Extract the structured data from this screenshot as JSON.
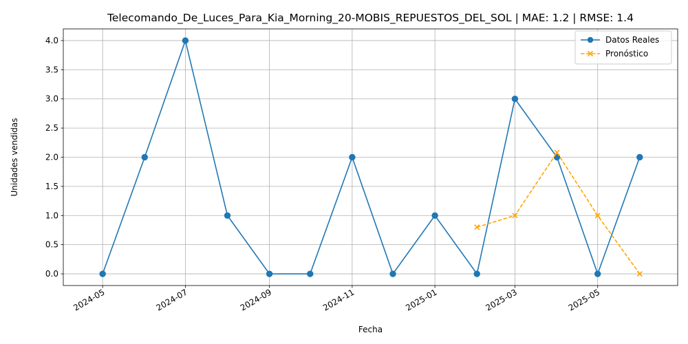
{
  "chart_data": {
    "type": "line",
    "title": "Telecomando_De_Luces_Para_Kia_Morning_20-MOBIS_REPUESTOS_DEL_SOL | MAE: 1.2 | RMSE: 1.4",
    "xlabel": "Fecha",
    "ylabel": "Unidades vendidas",
    "x_ticks": [
      "2024-05",
      "2024-07",
      "2024-09",
      "2024-11",
      "2025-01",
      "2025-03",
      "2025-05"
    ],
    "y_ticks": [
      "0.0",
      "0.5",
      "1.0",
      "1.5",
      "2.0",
      "2.5",
      "3.0",
      "3.5",
      "4.0"
    ],
    "ylim": [
      -0.2,
      4.2
    ],
    "xlim": [
      "2024-04-02",
      "2025-06-29"
    ],
    "grid": true,
    "legend_position": "top-right",
    "series": [
      {
        "name": "Datos Reales",
        "color": "#1f77b4",
        "line_style": "solid",
        "marker": "circle",
        "x": [
          "2024-05-01",
          "2024-06-01",
          "2024-07-01",
          "2024-08-01",
          "2024-09-01",
          "2024-10-01",
          "2024-11-01",
          "2024-12-01",
          "2025-01-01",
          "2025-02-01",
          "2025-03-01",
          "2025-04-01",
          "2025-05-01",
          "2025-06-01"
        ],
        "values": [
          0,
          2,
          4,
          1,
          0,
          0,
          2,
          0,
          1,
          0,
          3,
          2,
          0,
          2
        ]
      },
      {
        "name": "Pronóstico",
        "color": "#ffa500",
        "line_style": "dashed",
        "marker": "x",
        "x": [
          "2025-02-01",
          "2025-03-01",
          "2025-04-01",
          "2025-05-01",
          "2025-06-01"
        ],
        "values": [
          0.8,
          1.0,
          2.08,
          1.0,
          0.0
        ]
      }
    ]
  }
}
